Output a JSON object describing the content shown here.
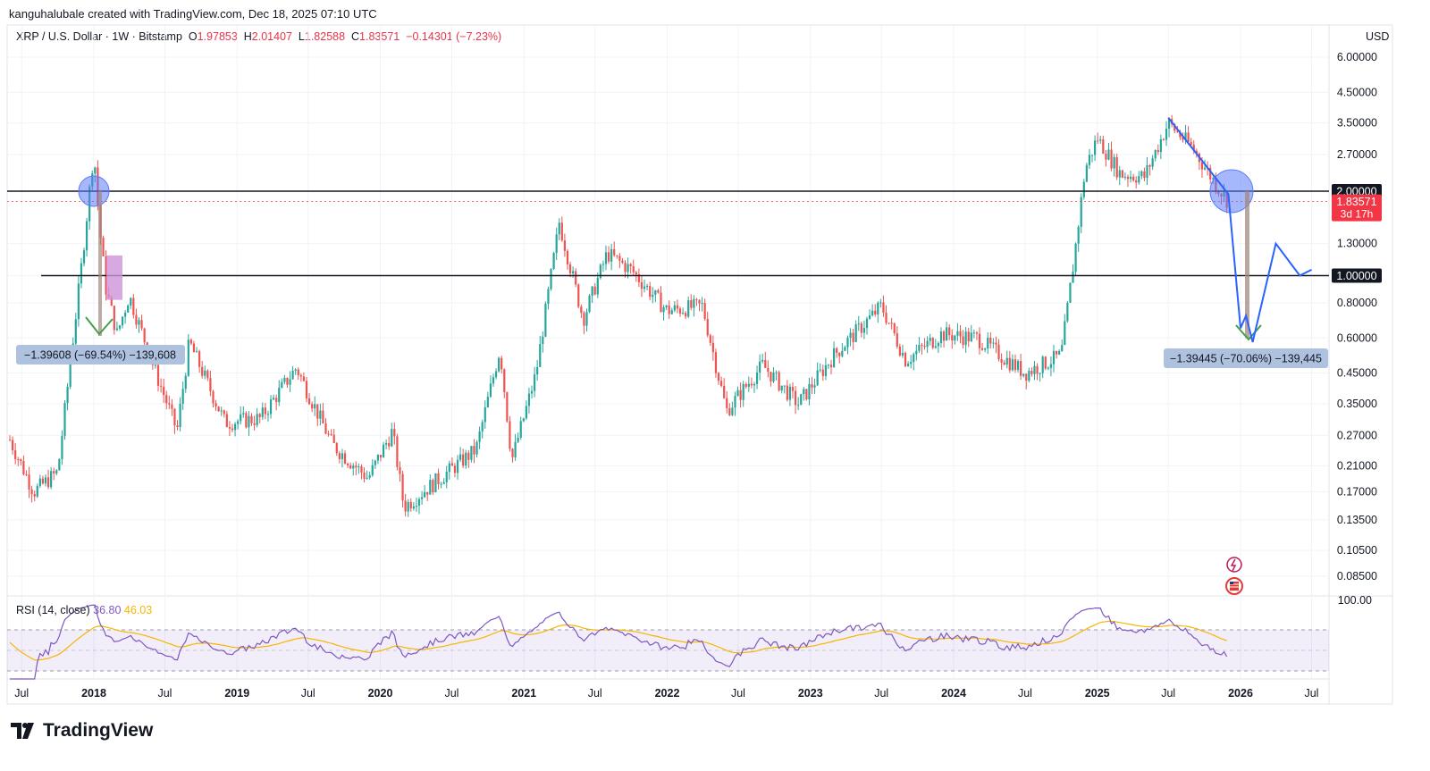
{
  "header": {
    "attribution": "kanguhalubale created with TradingView.com, Dec 18, 2025 07:10 UTC"
  },
  "legend": {
    "symbol": "XRP / U.S. Dollar · 1W · Bitstamp",
    "open_label": "O",
    "open": "1.97853",
    "high_label": "H",
    "high": "2.01407",
    "low_label": "L",
    "low": "1.82588",
    "close_label": "C",
    "close": "1.83571",
    "change": "−0.14301 (−7.23%)"
  },
  "currency": "USD",
  "rsi": {
    "title": "RSI (14, close)",
    "value": "36.80",
    "ma": "46.03",
    "top_label": "100.00"
  },
  "brand": "TradingView",
  "colors": {
    "up": "#26a69a",
    "down": "#ef5350",
    "projection": "#2962ff",
    "rsi_line": "#7e57c2",
    "rsi_ma": "#f7b500",
    "price_tag": "#f23645"
  },
  "chart_data": {
    "type": "candlestick",
    "scale": "log",
    "title": "XRP / U.S. Dollar · 1W · Bitstamp",
    "y_axis": [
      "6.00000",
      "4.50000",
      "3.50000",
      "2.70000",
      "2.00000",
      "1.30000",
      "1.00000",
      "0.80000",
      "0.60000",
      "0.45000",
      "0.35000",
      "0.27000",
      "0.21000",
      "0.17000",
      "0.13500",
      "0.10500",
      "0.08500"
    ],
    "x_axis": [
      "Jul",
      "2018",
      "Jul",
      "2019",
      "Jul",
      "2020",
      "Jul",
      "2021",
      "Jul",
      "2022",
      "Jul",
      "2023",
      "Jul",
      "2024",
      "Jul",
      "2025",
      "Jul",
      "2026",
      "Jul"
    ],
    "price_tag": {
      "value": "1.83571",
      "countdown": "3d 17h"
    },
    "horizontal_levels": [
      {
        "value": 2.0,
        "label": "2.00000"
      },
      {
        "value": 1.0,
        "label": "1.00000"
      }
    ],
    "approx_path": [
      {
        "date": "2017-06",
        "close": 0.26
      },
      {
        "date": "2017-08",
        "close": 0.17
      },
      {
        "date": "2017-10",
        "close": 0.2
      },
      {
        "date": "2017-12",
        "close": 1.1
      },
      {
        "date": "2018-01",
        "close": 2.8
      },
      {
        "date": "2018-01-15",
        "close": 1.5
      },
      {
        "date": "2018-02",
        "close": 0.9
      },
      {
        "date": "2018-03",
        "close": 0.62
      },
      {
        "date": "2018-04",
        "close": 0.85
      },
      {
        "date": "2018-06",
        "close": 0.48
      },
      {
        "date": "2018-08",
        "close": 0.28
      },
      {
        "date": "2018-09",
        "close": 0.58
      },
      {
        "date": "2018-12",
        "close": 0.3
      },
      {
        "date": "2019-03",
        "close": 0.31
      },
      {
        "date": "2019-06",
        "close": 0.47
      },
      {
        "date": "2019-09",
        "close": 0.25
      },
      {
        "date": "2019-12",
        "close": 0.19
      },
      {
        "date": "2020-02",
        "close": 0.28
      },
      {
        "date": "2020-03",
        "close": 0.15
      },
      {
        "date": "2020-06",
        "close": 0.19
      },
      {
        "date": "2020-09",
        "close": 0.24
      },
      {
        "date": "2020-11",
        "close": 0.55
      },
      {
        "date": "2020-12",
        "close": 0.22
      },
      {
        "date": "2021-02",
        "close": 0.45
      },
      {
        "date": "2021-04",
        "close": 1.55
      },
      {
        "date": "2021-06",
        "close": 0.7
      },
      {
        "date": "2021-08",
        "close": 1.2
      },
      {
        "date": "2021-10",
        "close": 1.05
      },
      {
        "date": "2022-01",
        "close": 0.75
      },
      {
        "date": "2022-04",
        "close": 0.78
      },
      {
        "date": "2022-06",
        "close": 0.33
      },
      {
        "date": "2022-09",
        "close": 0.48
      },
      {
        "date": "2022-12",
        "close": 0.35
      },
      {
        "date": "2023-03",
        "close": 0.52
      },
      {
        "date": "2023-07",
        "close": 0.78
      },
      {
        "date": "2023-09",
        "close": 0.5
      },
      {
        "date": "2023-12",
        "close": 0.62
      },
      {
        "date": "2024-03",
        "close": 0.6
      },
      {
        "date": "2024-07",
        "close": 0.45
      },
      {
        "date": "2024-10",
        "close": 0.52
      },
      {
        "date": "2024-11",
        "close": 1.1
      },
      {
        "date": "2024-12",
        "close": 2.4
      },
      {
        "date": "2025-01",
        "close": 3.1
      },
      {
        "date": "2025-03",
        "close": 2.3
      },
      {
        "date": "2025-05",
        "close": 2.25
      },
      {
        "date": "2025-07",
        "close": 3.5
      },
      {
        "date": "2025-09",
        "close": 2.85
      },
      {
        "date": "2025-11",
        "close": 2.1
      },
      {
        "date": "2025-12",
        "close": 1.83571
      }
    ],
    "measurements": [
      {
        "label": "−1.39608 (−69.54%) −139,608",
        "from_price": 2.0,
        "to_price": 0.61
      },
      {
        "label": "−1.39445 (−70.06%) −139,445",
        "from_price": 2.0,
        "to_price": 0.6
      }
    ],
    "projection_path": [
      {
        "date": "2025-07",
        "price": 3.65
      },
      {
        "date": "2025-12",
        "price": 1.95
      },
      {
        "date": "2026-01",
        "price": 0.65
      },
      {
        "date": "2026-01-15",
        "price": 0.72
      },
      {
        "date": "2026-02",
        "price": 0.58
      },
      {
        "date": "2026-04",
        "price": 1.3
      },
      {
        "date": "2026-06",
        "price": 1.0
      },
      {
        "date": "2026-07",
        "price": 1.05
      }
    ],
    "rsi": {
      "value": 36.8,
      "ma": 46.03,
      "period": 14
    }
  }
}
